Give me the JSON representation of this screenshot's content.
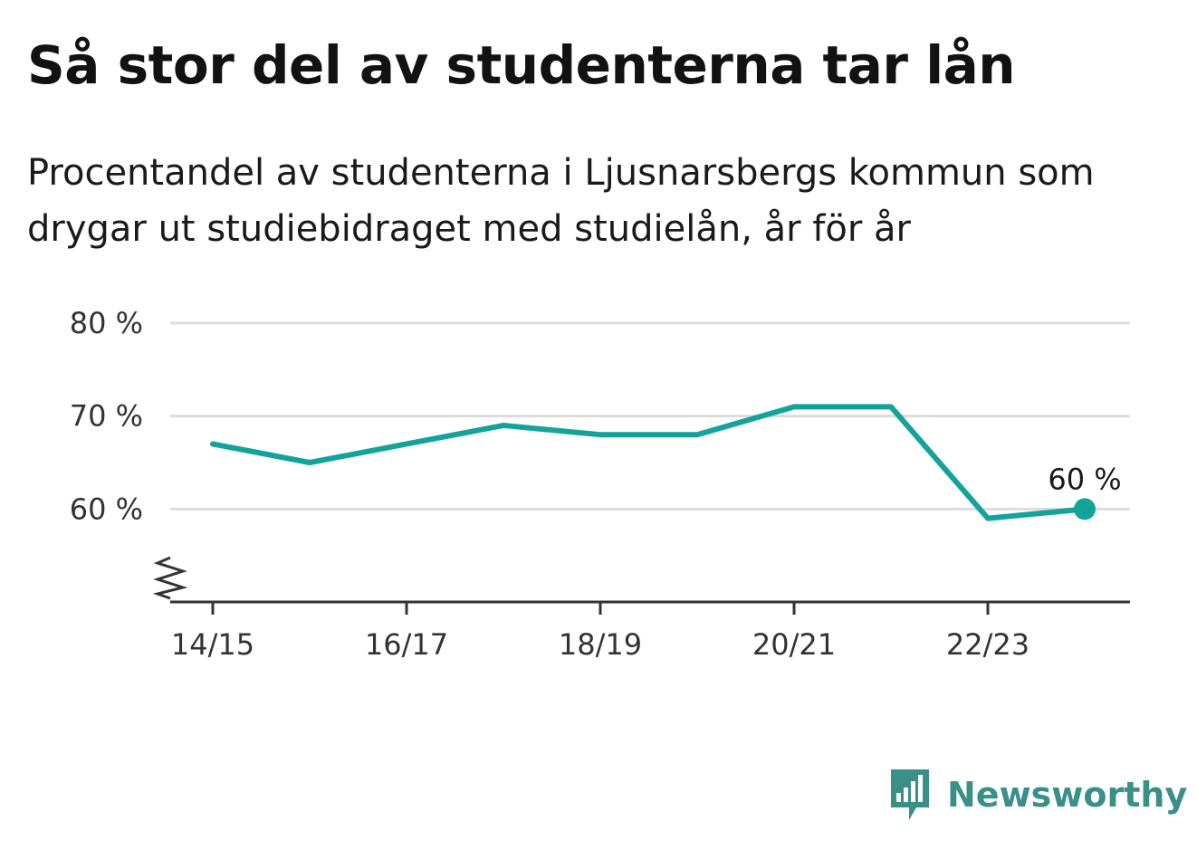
{
  "header": {
    "title": "Så stor del av studenterna tar lån",
    "subtitle": "Procentandel av studenterna i Ljusnarsbergs kommun som drygar ut studiebidraget med studielån, år för år"
  },
  "brand": {
    "name": "Newsworthy",
    "icon": "newsworthy-logo-icon",
    "color": "#3a8f89"
  },
  "colors": {
    "line": "#13a39a",
    "grid": "#dddddd",
    "axis": "#333333"
  },
  "chart_data": {
    "type": "line",
    "title": "Så stor del av studenterna tar lån",
    "subtitle": "Procentandel av studenterna i Ljusnarsbergs kommun som drygar ut studiebidraget med studielån, år för år",
    "xlabel": "",
    "ylabel": "",
    "x": [
      "14/15",
      "15/16",
      "16/17",
      "17/18",
      "18/19",
      "19/20",
      "20/21",
      "21/22",
      "22/23",
      "23/24"
    ],
    "x_tick_labels": [
      "14/15",
      "16/17",
      "18/19",
      "20/21",
      "22/23"
    ],
    "series": [
      {
        "values": [
          67,
          65,
          67,
          69,
          68,
          68,
          71,
          71,
          59,
          60
        ]
      }
    ],
    "ylim": [
      50,
      80
    ],
    "y_tick_values": [
      60,
      70,
      80
    ],
    "y_tick_labels": [
      "60 %",
      "70 %",
      "80 %"
    ],
    "y_axis_broken": true,
    "grid": true,
    "legend": "none",
    "annotations": [
      {
        "x": "23/24",
        "text": "60 %"
      }
    ]
  }
}
